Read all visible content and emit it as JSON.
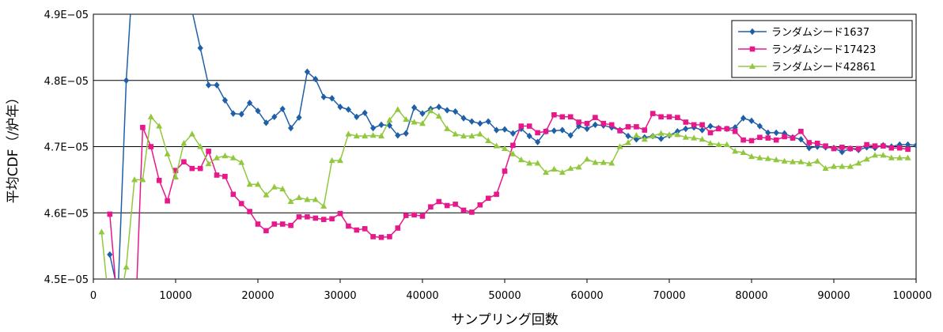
{
  "chart_data": {
    "type": "line",
    "title": "",
    "xlabel": "サンプリング回数",
    "ylabel": "平均CDF（/炉年）",
    "xlim": [
      0,
      100000
    ],
    "ylim": [
      4.5e-05,
      4.9e-05
    ],
    "x_ticks": [
      0,
      10000,
      20000,
      30000,
      40000,
      50000,
      60000,
      70000,
      80000,
      90000,
      100000
    ],
    "x_tick_labels": [
      "0",
      "10000",
      "20000",
      "30000",
      "40000",
      "50000",
      "60000",
      "70000",
      "80000",
      "90000",
      "100000"
    ],
    "y_ticks": [
      4.5e-05,
      4.6e-05,
      4.7e-05,
      4.8e-05,
      4.9e-05
    ],
    "y_tick_labels": [
      "4.5E−05",
      "4.6E−05",
      "4.7E−05",
      "4.8E−05",
      "4.9E−05"
    ],
    "grid": "horizontal",
    "legend_position": "top-right",
    "x_step": 1000,
    "series": [
      {
        "name": "ランダムシード1637",
        "color": "#1F5FA8",
        "marker": "diamond",
        "values": [
          null,
          4.537e-05,
          4.48e-05,
          4.8e-05,
          5e-05,
          null,
          null,
          null,
          null,
          null,
          null,
          4.905e-05,
          4.849e-05,
          4.793e-05,
          4.793e-05,
          4.77e-05,
          4.75e-05,
          4.749e-05,
          4.766e-05,
          4.754e-05,
          4.736e-05,
          4.745e-05,
          4.757e-05,
          4.728e-05,
          4.744e-05,
          4.813e-05,
          4.802e-05,
          4.775e-05,
          4.773e-05,
          4.76e-05,
          4.756e-05,
          4.745e-05,
          4.751e-05,
          4.728e-05,
          4.733e-05,
          4.732e-05,
          4.717e-05,
          4.72e-05,
          4.759e-05,
          4.75e-05,
          4.757e-05,
          4.76e-05,
          4.755e-05,
          4.753e-05,
          4.743e-05,
          4.738e-05,
          4.735e-05,
          4.738e-05,
          4.725e-05,
          4.726e-05,
          4.72e-05,
          4.727e-05,
          4.716e-05,
          4.707e-05,
          4.723e-05,
          4.724e-05,
          4.725e-05,
          4.717e-05,
          4.731e-05,
          4.727e-05,
          4.733e-05,
          4.732e-05,
          4.729e-05,
          4.725e-05,
          4.716e-05,
          4.711e-05,
          4.714e-05,
          4.716e-05,
          4.712e-05,
          4.717e-05,
          4.723e-05,
          4.727e-05,
          4.729e-05,
          4.725e-05,
          4.731e-05,
          4.728e-05,
          4.727e-05,
          4.729e-05,
          4.743e-05,
          4.739e-05,
          4.731e-05,
          4.721e-05,
          4.721e-05,
          4.72e-05,
          4.714e-05,
          4.711e-05,
          4.698e-05,
          4.7e-05,
          4.699e-05,
          4.698e-05,
          4.692e-05,
          4.697e-05,
          4.695e-05,
          4.699e-05,
          4.698e-05,
          4.702e-05,
          4.7e-05,
          4.703e-05,
          4.703e-05,
          4.702e-05
        ]
      },
      {
        "name": "ランダムシード17423",
        "color": "#E6188A",
        "marker": "square",
        "values": [
          null,
          4.598e-05,
          4.45e-05,
          4.45e-05,
          4.4e-05,
          4.729e-05,
          4.7e-05,
          4.649e-05,
          4.618e-05,
          4.664e-05,
          4.677e-05,
          4.667e-05,
          4.667e-05,
          4.693e-05,
          4.657e-05,
          4.655e-05,
          4.628e-05,
          4.614e-05,
          4.602e-05,
          4.583e-05,
          4.573e-05,
          4.583e-05,
          4.583e-05,
          4.581e-05,
          4.594e-05,
          4.594e-05,
          4.592e-05,
          4.59e-05,
          4.591e-05,
          4.599e-05,
          4.58e-05,
          4.574e-05,
          4.576e-05,
          4.564e-05,
          4.563e-05,
          4.564e-05,
          4.577e-05,
          4.596e-05,
          4.597e-05,
          4.595e-05,
          4.609e-05,
          4.617e-05,
          4.611e-05,
          4.613e-05,
          4.604e-05,
          4.601e-05,
          4.612e-05,
          4.622e-05,
          4.628e-05,
          4.663e-05,
          4.702e-05,
          4.731e-05,
          4.731e-05,
          4.721e-05,
          4.723e-05,
          4.748e-05,
          4.745e-05,
          4.745e-05,
          4.737e-05,
          4.735e-05,
          4.744e-05,
          4.735e-05,
          4.733e-05,
          4.724e-05,
          4.73e-05,
          4.73e-05,
          4.725e-05,
          4.75e-05,
          4.745e-05,
          4.745e-05,
          4.744e-05,
          4.737e-05,
          4.733e-05,
          4.733e-05,
          4.721e-05,
          4.727e-05,
          4.727e-05,
          4.723e-05,
          4.71e-05,
          4.709e-05,
          4.714e-05,
          4.713e-05,
          4.71e-05,
          4.715e-05,
          4.713e-05,
          4.723e-05,
          4.706e-05,
          4.705e-05,
          4.701e-05,
          4.697e-05,
          4.699e-05,
          4.697e-05,
          4.697e-05,
          4.703e-05,
          4.701e-05,
          4.701e-05,
          4.698e-05,
          4.698e-05,
          4.696e-05
        ]
      },
      {
        "name": "ランダムシード42861",
        "color": "#92C83E",
        "marker": "triangle",
        "values": [
          4.571e-05,
          4.45e-05,
          4.45e-05,
          4.518e-05,
          4.65e-05,
          4.65e-05,
          4.745e-05,
          4.731e-05,
          4.689e-05,
          4.654e-05,
          4.705e-05,
          4.719e-05,
          4.7e-05,
          4.674e-05,
          4.683e-05,
          4.686e-05,
          4.683e-05,
          4.676e-05,
          4.643e-05,
          4.643e-05,
          4.627e-05,
          4.639e-05,
          4.636e-05,
          4.617e-05,
          4.623e-05,
          4.62e-05,
          4.62e-05,
          4.61e-05,
          4.679e-05,
          4.679e-05,
          4.719e-05,
          4.716e-05,
          4.716e-05,
          4.717e-05,
          4.716e-05,
          4.74e-05,
          4.756e-05,
          4.741e-05,
          4.737e-05,
          4.735e-05,
          4.754e-05,
          4.746e-05,
          4.727e-05,
          4.719e-05,
          4.716e-05,
          4.716e-05,
          4.719e-05,
          4.709e-05,
          4.701e-05,
          4.697e-05,
          4.689e-05,
          4.68e-05,
          4.675e-05,
          4.675e-05,
          4.661e-05,
          4.666e-05,
          4.661e-05,
          4.667e-05,
          4.669e-05,
          4.681e-05,
          4.676e-05,
          4.676e-05,
          4.675e-05,
          4.7e-05,
          4.706e-05,
          4.717e-05,
          4.711e-05,
          4.716e-05,
          4.72e-05,
          4.718e-05,
          4.718e-05,
          4.714e-05,
          4.713e-05,
          4.711e-05,
          4.705e-05,
          4.703e-05,
          4.703e-05,
          4.693e-05,
          4.691e-05,
          4.685e-05,
          4.683e-05,
          4.682e-05,
          4.68e-05,
          4.678e-05,
          4.677e-05,
          4.677e-05,
          4.674e-05,
          4.678e-05,
          4.667e-05,
          4.67e-05,
          4.67e-05,
          4.67e-05,
          4.675e-05,
          4.681e-05,
          4.687e-05,
          4.687e-05,
          4.683e-05,
          4.683e-05,
          4.683e-05
        ]
      }
    ]
  }
}
